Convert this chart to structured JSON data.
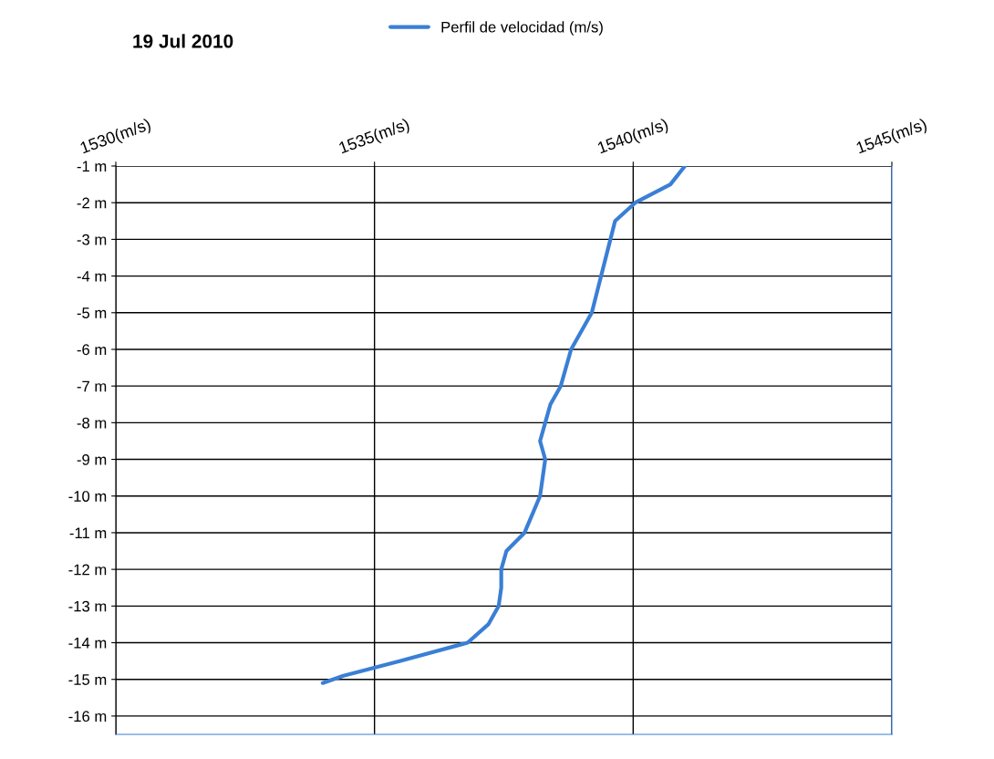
{
  "chart_data": {
    "type": "line",
    "title": "19 Jul 2010",
    "legend": "top",
    "series": [
      {
        "name": "Perfil de velocidad (m/s)",
        "color": "#3a7fd5",
        "x": [
          1541.0,
          1540.72,
          1540.04,
          1539.65,
          1539.56,
          1539.38,
          1539.2,
          1538.8,
          1538.6,
          1538.4,
          1538.3,
          1538.2,
          1538.3,
          1538.25,
          1538.2,
          1538.05,
          1537.9,
          1537.55,
          1537.45,
          1537.45,
          1537.4,
          1537.2,
          1536.8,
          1535.5,
          1534.4,
          1534.0
        ],
        "values": [
          -1,
          -1.5,
          -2,
          -2.5,
          -3,
          -4,
          -5,
          -6,
          -7,
          -7.5,
          -8,
          -8.5,
          -9,
          -9.5,
          -10,
          -10.5,
          -11,
          -11.5,
          -12,
          -12.5,
          -13,
          -13.5,
          -14,
          -14.5,
          -14.9,
          -15.1
        ]
      }
    ],
    "xlim": [
      1530,
      1545
    ],
    "xticks": [
      {
        "value": 1530,
        "label": "1530(m/s)"
      },
      {
        "value": 1535,
        "label": "1535(m/s)"
      },
      {
        "value": 1540,
        "label": "1540(m/s)"
      },
      {
        "value": 1545,
        "label": "1545(m/s)"
      }
    ],
    "ylim": [
      -16.5,
      -1
    ],
    "yticks": [
      {
        "value": -1,
        "label": "-1 m"
      },
      {
        "value": -2,
        "label": "-2 m"
      },
      {
        "value": -3,
        "label": "-3 m"
      },
      {
        "value": -4,
        "label": "-4 m"
      },
      {
        "value": -5,
        "label": "-5 m"
      },
      {
        "value": -6,
        "label": "-6 m"
      },
      {
        "value": -7,
        "label": "-7 m"
      },
      {
        "value": -8,
        "label": "-8 m"
      },
      {
        "value": -9,
        "label": "-9 m"
      },
      {
        "value": -10,
        "label": "-10 m"
      },
      {
        "value": -11,
        "label": "-11 m"
      },
      {
        "value": -12,
        "label": "-12 m"
      },
      {
        "value": -13,
        "label": "-13 m"
      },
      {
        "value": -14,
        "label": "-14 m"
      },
      {
        "value": -15,
        "label": "-15 m"
      },
      {
        "value": -16,
        "label": "-16 m"
      }
    ],
    "grid": true
  }
}
